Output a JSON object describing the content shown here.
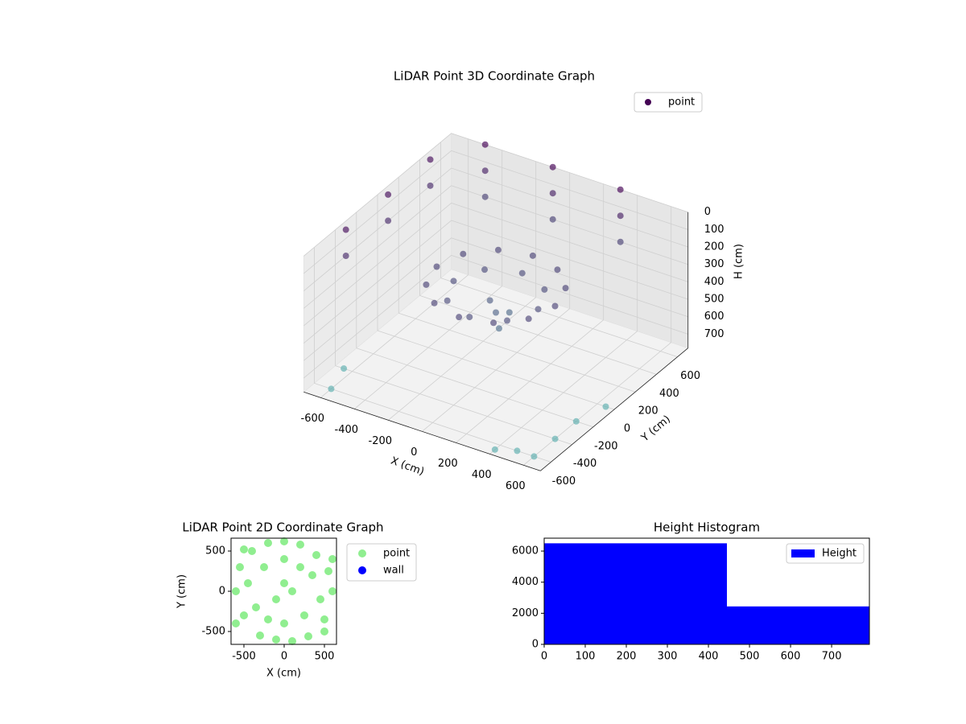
{
  "chart_data": [
    {
      "type": "scatter3d",
      "title": "LiDAR Point 3D Coordinate Graph",
      "xlabel": "X (cm)",
      "ylabel": "Y (cm)",
      "zlabel": "H (cm)",
      "xlim": [
        -700,
        700
      ],
      "ylim": [
        -700,
        700
      ],
      "zlim": [
        0,
        780
      ],
      "z_inverted": true,
      "xticks": [
        -600,
        -400,
        -200,
        0,
        200,
        400,
        600
      ],
      "yticks": [
        -600,
        -400,
        -200,
        0,
        200,
        400,
        600
      ],
      "zticks": [
        0,
        100,
        200,
        300,
        400,
        500,
        600,
        700
      ],
      "cmap": [
        "#440154",
        "#5aaeae"
      ],
      "legend": "upper right",
      "series": [
        {
          "name": "point",
          "color": "#440154",
          "x": [
            350,
            303,
            175,
            0,
            -175,
            -303,
            -350,
            -303,
            -175,
            0,
            175,
            303,
            250,
            177,
            0,
            -177,
            -250,
            -177,
            0,
            177,
            0,
            50,
            -60,
            30,
            -500,
            -100,
            300,
            -500,
            -100,
            300,
            -500,
            -100,
            300,
            -700,
            -700,
            -700,
            -700,
            -700,
            -700,
            600,
            600,
            600,
            500,
            400,
            650,
            -650,
            -600
          ],
          "y": [
            0,
            175,
            303,
            350,
            303,
            175,
            0,
            -175,
            -303,
            -350,
            -303,
            -175,
            0,
            177,
            250,
            177,
            0,
            -177,
            -250,
            -177,
            0,
            -50,
            40,
            80,
            700,
            700,
            700,
            700,
            700,
            700,
            700,
            700,
            700,
            -300,
            100,
            500,
            -300,
            100,
            500,
            -600,
            -400,
            -200,
            -600,
            -650,
            0,
            -400,
            -600
          ],
          "h": [
            300,
            300,
            300,
            300,
            300,
            300,
            300,
            300,
            300,
            300,
            300,
            300,
            350,
            350,
            350,
            350,
            350,
            350,
            350,
            350,
            450,
            500,
            420,
            480,
            0,
            0,
            0,
            150,
            150,
            150,
            300,
            300,
            300,
            50,
            50,
            50,
            200,
            200,
            200,
            780,
            780,
            780,
            780,
            780,
            780,
            780,
            780
          ]
        }
      ]
    },
    {
      "type": "scatter",
      "title": "LiDAR Point 2D Coordinate Graph",
      "xlabel": "X (cm)",
      "ylabel": "Y (cm)",
      "xlim": [
        -660,
        650
      ],
      "ylim": [
        -660,
        660
      ],
      "xticks": [
        -500,
        0,
        500
      ],
      "yticks": [
        -500,
        0,
        500
      ],
      "legend": "outside right",
      "series": [
        {
          "name": "point",
          "color": "#90ee90",
          "x": [
            -600,
            -550,
            -500,
            -400,
            -300,
            -200,
            -100,
            0,
            100,
            200,
            300,
            400,
            500,
            550,
            600,
            -450,
            -350,
            350,
            450,
            -250,
            250,
            0,
            -100,
            100,
            0,
            -600,
            600,
            -500,
            500,
            200,
            -200,
            0
          ],
          "y": [
            0,
            300,
            -300,
            500,
            -550,
            600,
            -600,
            620,
            -620,
            580,
            -560,
            450,
            -350,
            250,
            0,
            100,
            -200,
            200,
            -100,
            300,
            -300,
            100,
            -100,
            0,
            -400,
            -400,
            400,
            520,
            -500,
            300,
            -350,
            400
          ]
        },
        {
          "name": "wall",
          "color": "#0000ff",
          "x": [],
          "y": []
        }
      ]
    },
    {
      "type": "histogram",
      "title": "Height Histogram",
      "xlim": [
        0,
        792
      ],
      "ylim": [
        0,
        6830
      ],
      "xticks": [
        0,
        100,
        200,
        300,
        400,
        500,
        600,
        700
      ],
      "yticks": [
        0,
        2000,
        4000,
        6000
      ],
      "legend": "upper right",
      "bins": [
        0,
        445,
        792
      ],
      "series": [
        {
          "name": "Height",
          "color": "#0000ff",
          "values": [
            6500,
            2440
          ]
        }
      ]
    }
  ]
}
